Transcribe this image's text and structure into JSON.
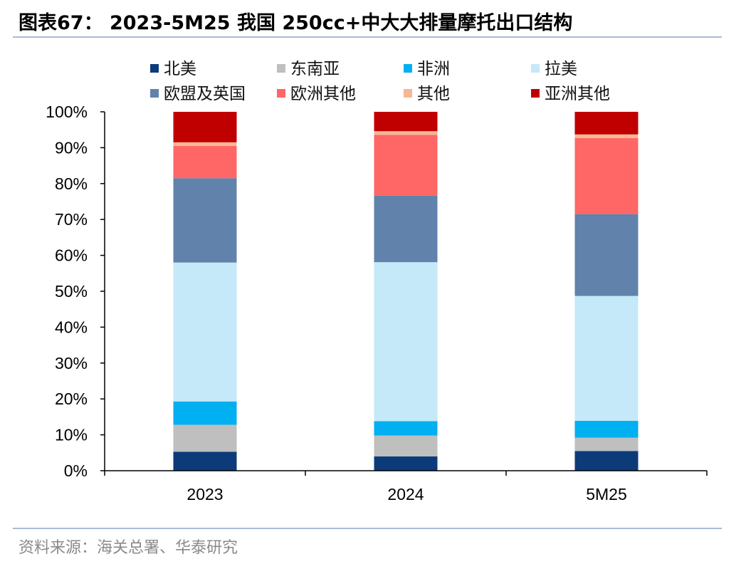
{
  "title": "图表67： 2023-5M25 我国 250cc+中大大排量摩托出口结构",
  "source": "资料来源：海关总署、华泰研究",
  "chart_data": {
    "type": "bar",
    "stacked": true,
    "normalized": true,
    "categories": [
      "2023",
      "2024",
      "5M25"
    ],
    "y_ticks": [
      "0%",
      "10%",
      "20%",
      "30%",
      "40%",
      "50%",
      "60%",
      "70%",
      "80%",
      "90%",
      "100%"
    ],
    "ylim": [
      0,
      100
    ],
    "legend_position": "top",
    "series": [
      {
        "name": "北美",
        "color": "#0d3b7a",
        "values": [
          5.3,
          4.0,
          5.5
        ]
      },
      {
        "name": "东南亚",
        "color": "#bfbfbf",
        "values": [
          7.5,
          5.8,
          3.7
        ]
      },
      {
        "name": "非洲",
        "color": "#00b0f0",
        "values": [
          6.5,
          4.0,
          4.7
        ]
      },
      {
        "name": "拉美",
        "color": "#c5e9f8",
        "values": [
          38.7,
          44.3,
          34.8
        ]
      },
      {
        "name": "欧盟及英国",
        "color": "#6182aa",
        "values": [
          23.5,
          18.5,
          22.8
        ]
      },
      {
        "name": "欧洲其他",
        "color": "#ff6666",
        "values": [
          9.0,
          17.0,
          21.2
        ]
      },
      {
        "name": "其他",
        "color": "#f5b894",
        "values": [
          1.0,
          1.0,
          1.0
        ]
      },
      {
        "name": "亚洲其他",
        "color": "#c00000",
        "values": [
          8.5,
          5.4,
          6.3
        ]
      }
    ]
  }
}
